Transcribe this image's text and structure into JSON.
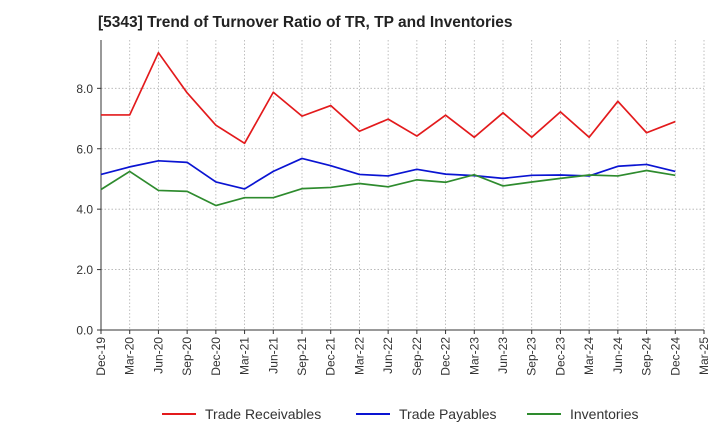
{
  "chart_data": {
    "type": "line",
    "title": "[5343]  Trend of Turnover Ratio of TR, TP and Inventories",
    "xlabel": "",
    "ylabel": "",
    "x": [
      "Dec-19",
      "Mar-20",
      "Jun-20",
      "Sep-20",
      "Dec-20",
      "Mar-21",
      "Jun-21",
      "Sep-21",
      "Dec-21",
      "Mar-22",
      "Jun-22",
      "Sep-22",
      "Dec-22",
      "Mar-23",
      "Jun-23",
      "Sep-23",
      "Dec-23",
      "Mar-24",
      "Jun-24",
      "Sep-24",
      "Dec-24"
    ],
    "x_ticks": [
      "Dec-19",
      "Mar-20",
      "Jun-20",
      "Sep-20",
      "Dec-20",
      "Mar-21",
      "Jun-21",
      "Sep-21",
      "Dec-21",
      "Mar-22",
      "Jun-22",
      "Sep-22",
      "Dec-22",
      "Mar-23",
      "Jun-23",
      "Sep-23",
      "Dec-23",
      "Mar-24",
      "Jun-24",
      "Sep-24",
      "Dec-24",
      "Mar-25"
    ],
    "y_ticks": [
      "0.0",
      "2.0",
      "4.0",
      "6.0",
      "8.0"
    ],
    "ylim": [
      0,
      9.6
    ],
    "grid": true,
    "legend_position": "bottom",
    "series": [
      {
        "name": "Trade Receivables",
        "color": "#e31a1c",
        "values": [
          7.12,
          7.12,
          9.18,
          7.85,
          6.78,
          6.18,
          7.87,
          7.08,
          7.43,
          6.58,
          6.98,
          6.42,
          7.11,
          6.38,
          7.19,
          6.38,
          7.22,
          6.38,
          7.57,
          6.53,
          6.9
        ]
      },
      {
        "name": "Trade Payables",
        "color": "#0a14d2",
        "values": [
          5.15,
          5.4,
          5.6,
          5.55,
          4.9,
          4.67,
          5.25,
          5.68,
          5.44,
          5.15,
          5.1,
          5.32,
          5.16,
          5.11,
          5.02,
          5.12,
          5.13,
          5.1,
          5.42,
          5.48,
          5.25
        ]
      },
      {
        "name": "Inventories",
        "color": "#2e8b2e",
        "values": [
          4.65,
          5.25,
          4.62,
          4.59,
          4.12,
          4.38,
          4.38,
          4.68,
          4.72,
          4.85,
          4.74,
          4.97,
          4.89,
          5.14,
          4.77,
          4.9,
          5.02,
          5.13,
          5.1,
          5.28,
          5.12
        ]
      }
    ]
  }
}
